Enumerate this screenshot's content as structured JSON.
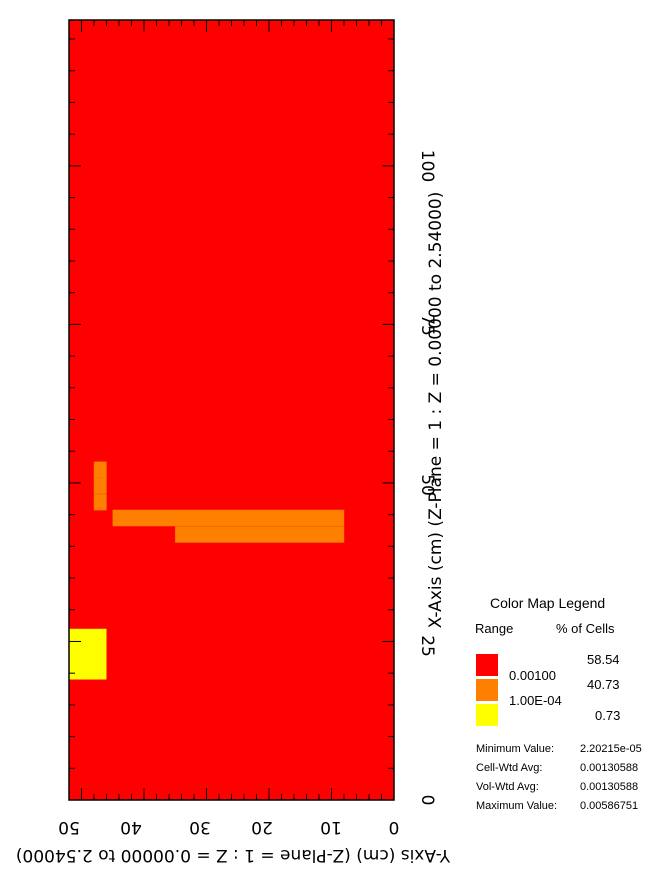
{
  "chart_data": {
    "type": "heatmap",
    "x_axis_label": "X-Axis (cm) (Z-Plane = 1 : Z = 0.00000 to 2.54000)",
    "y_axis_label": "Y-Axis (cm) (Z-Plane = 1 : Z = 0.00000 to 2.54000)",
    "x_range": [
      0,
      123
    ],
    "y_range": [
      0,
      52
    ],
    "x_ticks": [
      "0",
      "25",
      "50",
      "75",
      "100"
    ],
    "y_ticks": [
      "50",
      "40",
      "30",
      "20",
      "10",
      "0"
    ],
    "background_class": "0.00100",
    "cell_step": 2.54,
    "region_1e-04": [
      [
        10.2,
        0,
        41
      ],
      [
        12.7,
        0,
        33
      ],
      [
        15.3,
        0,
        13
      ],
      [
        17.8,
        0,
        8
      ],
      [
        20.3,
        0,
        8
      ],
      [
        22.9,
        0,
        8
      ],
      [
        25.4,
        0,
        8
      ],
      [
        27.9,
        0,
        8
      ],
      [
        30.5,
        0,
        5
      ],
      [
        33.0,
        0,
        8
      ],
      [
        35.6,
        0,
        8
      ],
      [
        38.1,
        0,
        8
      ],
      [
        40.6,
        35,
        8
      ],
      [
        43.2,
        45,
        8
      ],
      [
        45.7,
        48,
        46
      ],
      [
        48.3,
        48,
        46
      ],
      [
        50.8,
        48,
        46
      ],
      [
        53.3,
        50,
        50
      ],
      [
        55.9,
        50,
        50
      ],
      [
        58.4,
        50,
        50
      ],
      [
        61.0,
        50,
        50
      ],
      [
        63.5,
        50,
        50
      ],
      [
        66.0,
        50,
        50
      ],
      [
        68.6,
        50,
        50
      ],
      [
        71.1,
        50,
        50
      ],
      [
        73.7,
        50,
        50
      ],
      [
        76.2,
        50,
        50
      ],
      [
        78.7,
        50,
        50
      ],
      [
        81.3,
        50,
        50
      ],
      [
        83.8,
        50,
        50
      ],
      [
        86.4,
        50,
        50
      ],
      [
        88.9,
        50,
        50
      ],
      [
        91.4,
        50,
        50
      ],
      [
        94.0,
        50,
        50
      ],
      [
        96.5,
        50,
        50
      ],
      [
        99.1,
        50,
        50
      ],
      [
        101.6,
        50,
        50
      ],
      [
        104.1,
        50,
        50
      ],
      [
        106.7,
        50,
        50
      ],
      [
        109.2,
        50,
        50
      ],
      [
        111.8,
        50,
        50
      ],
      [
        114.3,
        50,
        50
      ]
    ],
    "legend": {
      "title": "Color Map Legend",
      "col_range": "Range",
      "col_pct": "% of Cells",
      "entries": [
        {
          "color": "#ff0000",
          "label": "0.00100",
          "pct": "58.54"
        },
        {
          "color": "#ff8000",
          "label": "1.00E-04",
          "pct": "40.73"
        },
        {
          "color": "#ffff00",
          "label": "",
          "pct": "0.73"
        }
      ]
    },
    "stats": [
      {
        "label": "Minimum Value:",
        "value": "2.20215e-05"
      },
      {
        "label": "Cell-Wtd Avg:",
        "value": "0.00130588"
      },
      {
        "label": "Vol-Wtd Avg:",
        "value": "0.00130588"
      },
      {
        "label": "Maximum Value:",
        "value": "0.00586751"
      }
    ]
  }
}
